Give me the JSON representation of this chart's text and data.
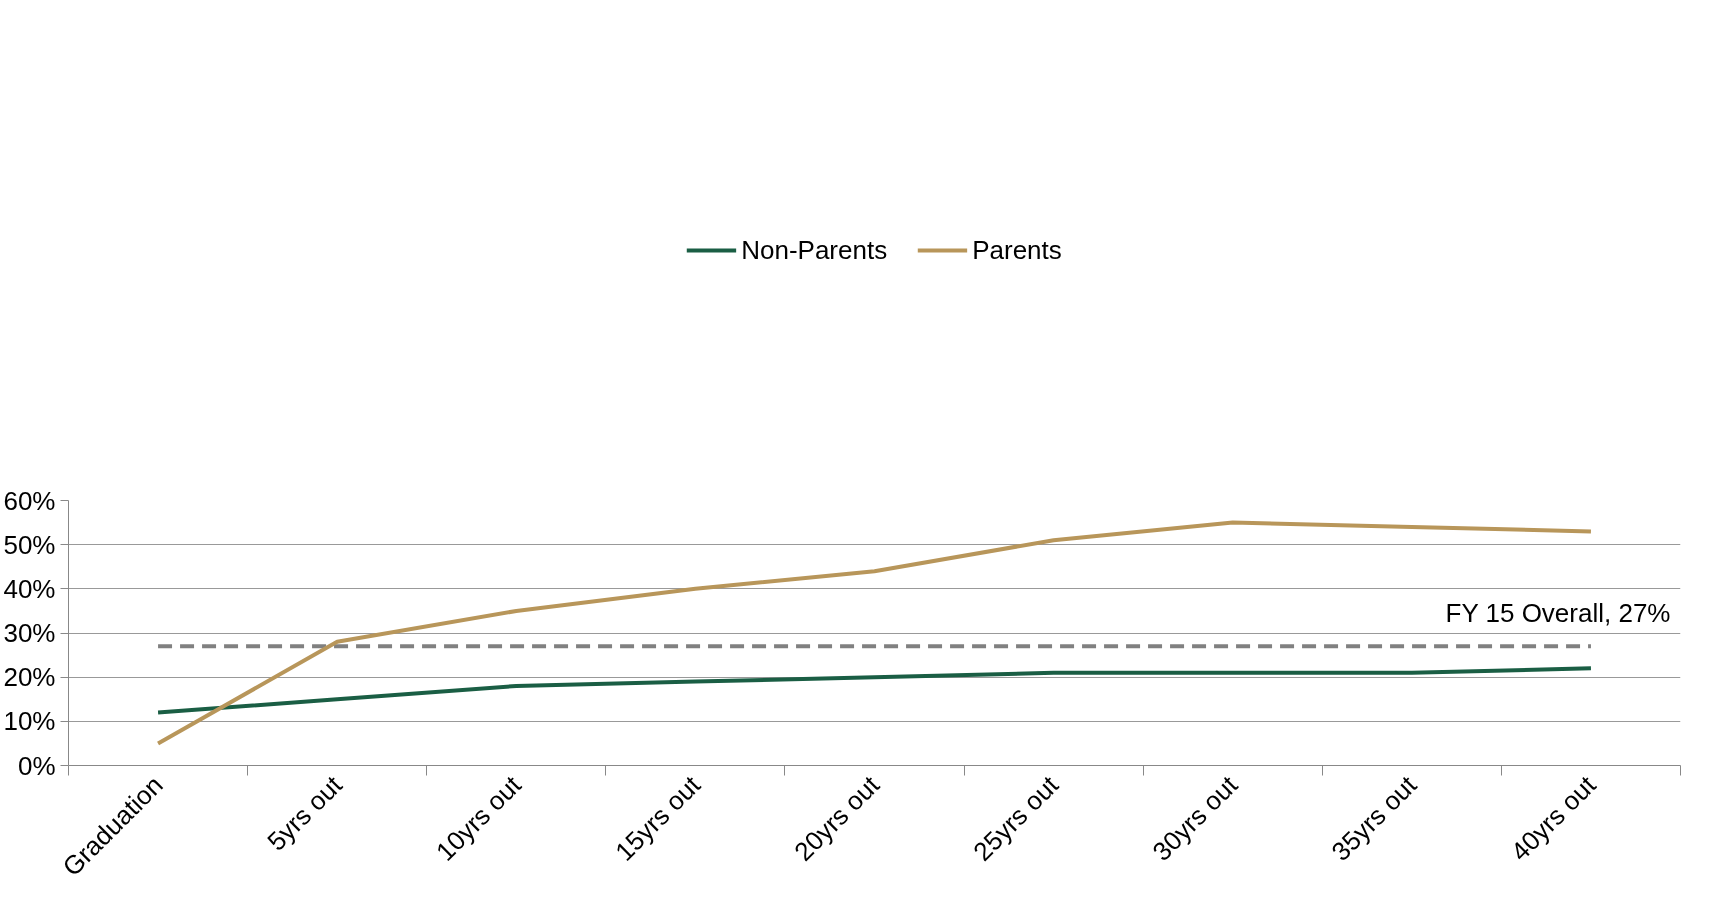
{
  "chart_data": {
    "type": "line",
    "categories": [
      "Graduation",
      "5yrs out",
      "10yrs out",
      "15yrs out",
      "20yrs out",
      "25yrs out",
      "30yrs out",
      "35yrs out",
      "40yrs out"
    ],
    "series": [
      {
        "name": "Non-Parents",
        "color": "#1a5e44",
        "values": [
          12,
          15,
          18,
          19,
          20,
          21,
          21,
          21,
          22
        ]
      },
      {
        "name": "Parents",
        "color": "#b8965a",
        "values": [
          5,
          28,
          35,
          40,
          44,
          51,
          55,
          54,
          53
        ]
      }
    ],
    "ylim": [
      0,
      60
    ],
    "yticks": [
      {
        "value": 0,
        "label": "0%"
      },
      {
        "value": 10,
        "label": "10%"
      },
      {
        "value": 20,
        "label": "20%"
      },
      {
        "value": 30,
        "label": "30%"
      },
      {
        "value": 40,
        "label": "40%"
      },
      {
        "value": 50,
        "label": "50%"
      },
      {
        "value": 60,
        "label": "60%"
      }
    ],
    "ref_lines": [
      {
        "axis": "y",
        "value": 27,
        "label": "FY 15 Overall, 27%",
        "color": "#808080",
        "line_style": "dashed"
      }
    ],
    "grid": "y",
    "legend": "top",
    "marker": "none",
    "line_style": "solid"
  }
}
